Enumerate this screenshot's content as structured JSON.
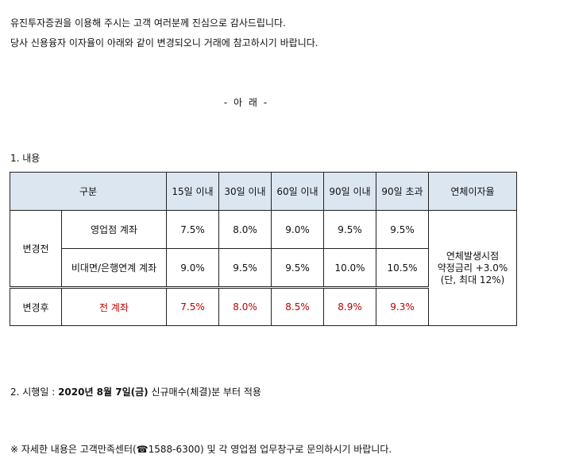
{
  "intro": {
    "line1": "유진투자증권을 이용해 주시는 고객 여러분께 진심으로 감사드립니다.",
    "line2": "당사 신용융자 이자율이 아래와 같이 변경되오니 거래에 참고하시기 바랍니다."
  },
  "below_heading": "- 아 래 -",
  "section1_title": "1. 내용",
  "table": {
    "headers": {
      "category": "구분",
      "d15": "15일 이내",
      "d30": "30일 이내",
      "d60": "60일 이내",
      "d90": "90일 이내",
      "d90over": "90일 초과",
      "overdue": "연체이자율"
    },
    "before_label": "변경전",
    "after_label": "변경후",
    "rows": [
      {
        "account": "영업점 계좌",
        "d15": "7.5%",
        "d30": "8.0%",
        "d60": "9.0%",
        "d90": "9.5%",
        "d90over": "9.5%"
      },
      {
        "account": "비대면/은행연계 계좌",
        "d15": "9.0%",
        "d30": "9.5%",
        "d60": "9.5%",
        "d90": "10.0%",
        "d90over": "10.5%"
      },
      {
        "account": "전 계좌",
        "d15": "7.5%",
        "d30": "8.0%",
        "d60": "8.5%",
        "d90": "8.9%",
        "d90over": "9.3%"
      }
    ],
    "overdue_rate": {
      "line1": "연체발생시점",
      "line2": "약정금리 +3.0%",
      "line3": "(단, 최대 12%)"
    }
  },
  "section2": {
    "prefix": "2. 시행일 : ",
    "date": "2020년 8월 7일(금)",
    "suffix": " 신규매수(체결)분 부터 적용"
  },
  "note": {
    "prefix": "※ 자세한 내용은 고객만족센터(",
    "phone_icon": "telephone-icon",
    "phone": "1588-6300",
    "suffix": ") 및 각 영업점 업무창구로 문의하시기 바랍니다."
  },
  "colors": {
    "header_bg": "#dce6f1",
    "highlight": "#c00000"
  }
}
